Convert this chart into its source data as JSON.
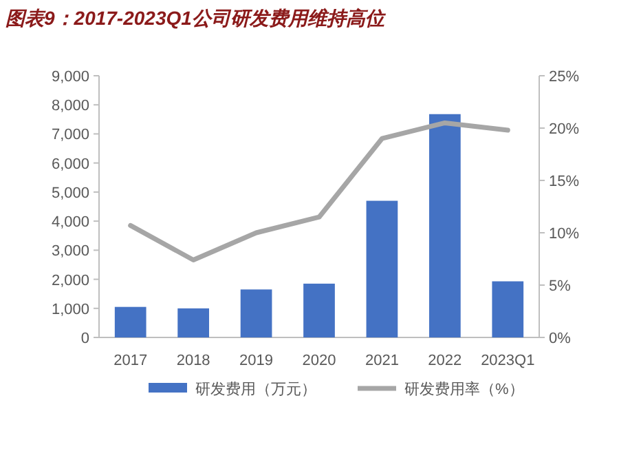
{
  "chart_data": {
    "type": "bar",
    "title": "图表9：2017-2023Q1公司研发费用维持高位",
    "categories": [
      "2017",
      "2018",
      "2019",
      "2020",
      "2021",
      "2022",
      "2023Q1"
    ],
    "series": [
      {
        "name": "研发费用（万元）",
        "color": "#4472c4",
        "values": [
          1050,
          1000,
          1650,
          1850,
          4700,
          7680,
          1930
        ]
      },
      {
        "name": "研发费用率（%）",
        "type": "line",
        "axis": "y2",
        "color": "#a6a6a6",
        "values": [
          10.7,
          7.4,
          10.0,
          11.5,
          19.0,
          20.5,
          19.8
        ]
      }
    ],
    "ylim": [
      0,
      9000
    ],
    "yticks": [
      0,
      {
        "value": 1000,
        "label": "1,000"
      },
      {
        "value": 2000,
        "label": "2,000"
      },
      {
        "value": 3000,
        "label": "3,000"
      },
      {
        "value": 4000,
        "label": "4,000"
      },
      {
        "value": 5000,
        "label": "5,000"
      },
      {
        "value": 6000,
        "label": "6,000"
      },
      {
        "value": 7000,
        "label": "7,000"
      },
      {
        "value": 8000,
        "label": "8,000"
      },
      {
        "value": 9000,
        "label": "9,000"
      }
    ],
    "y2lim": [
      0,
      25
    ],
    "y2ticks": [
      {
        "value": 0,
        "label": "0%"
      },
      {
        "value": 5,
        "label": "5%"
      },
      {
        "value": 10,
        "label": "10%"
      },
      {
        "value": 15,
        "label": "15%"
      },
      {
        "value": 20,
        "label": "20%"
      },
      {
        "value": 25,
        "label": "25%"
      }
    ],
    "legend": "bottom",
    "grid": false
  }
}
